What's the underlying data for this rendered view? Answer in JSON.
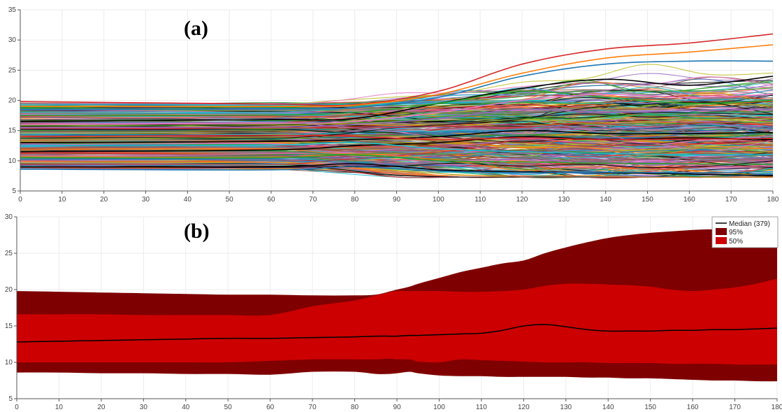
{
  "chart_data": [
    {
      "type": "line",
      "label": "(a)",
      "xlim": [
        0,
        180
      ],
      "ylim": [
        5,
        35
      ],
      "x_ticks": [
        0,
        10,
        20,
        30,
        40,
        50,
        60,
        70,
        80,
        90,
        100,
        110,
        120,
        130,
        140,
        150,
        160,
        170,
        180
      ],
      "y_ticks": [
        5,
        10,
        15,
        20,
        25,
        30,
        35
      ],
      "grid": true,
      "ensemble_member_count": 379,
      "palette": [
        "#1f77b4",
        "#ff7f0e",
        "#2ca02c",
        "#d62728",
        "#9467bd",
        "#8c564b",
        "#e377c2",
        "#7f7f7f",
        "#bcbd22",
        "#17becf",
        "#000000"
      ],
      "series": [
        {
          "x": [
            0,
            60,
            80,
            100,
            120,
            140,
            160,
            180
          ],
          "values": [
            19.8,
            19.4,
            19.3,
            21.5,
            26.0,
            28.5,
            29.5,
            31.0
          ],
          "color": "#d62728"
        },
        {
          "x": [
            0,
            60,
            80,
            100,
            120,
            140,
            160,
            180
          ],
          "values": [
            19.0,
            19.0,
            19.2,
            21.0,
            24.5,
            27.0,
            28.0,
            29.2
          ],
          "color": "#ff7f0e"
        },
        {
          "x": [
            0,
            60,
            80,
            100,
            120,
            140,
            160,
            180
          ],
          "values": [
            18.5,
            18.6,
            18.8,
            20.5,
            24.0,
            26.0,
            26.5,
            26.5
          ],
          "color": "#1f77b4"
        },
        {
          "x": [
            0,
            60,
            80,
            100,
            120,
            140,
            160,
            180
          ],
          "values": [
            16.5,
            16.8,
            17.0,
            19.5,
            22.0,
            23.5,
            22.5,
            24.0
          ],
          "color": "#000000"
        },
        {
          "x": [
            0,
            60,
            80,
            100,
            120,
            140,
            160,
            180
          ],
          "values": [
            13.0,
            13.2,
            13.5,
            14.0,
            15.0,
            14.5,
            14.5,
            14.7
          ],
          "color": "#000000"
        },
        {
          "x": [
            0,
            60,
            80,
            100,
            120,
            140,
            160,
            180
          ],
          "values": [
            11.5,
            11.8,
            12.5,
            13.0,
            14.0,
            13.5,
            13.8,
            13.5
          ],
          "color": "#000000"
        },
        {
          "x": [
            0,
            60,
            80,
            100,
            120,
            140,
            160,
            180
          ],
          "values": [
            9.0,
            9.0,
            9.5,
            8.5,
            8.2,
            8.0,
            7.8,
            7.5
          ],
          "color": "#000000"
        },
        {
          "x": [
            0,
            60,
            80,
            100,
            120,
            140,
            160,
            180
          ],
          "values": [
            8.6,
            8.5,
            9.0,
            8.3,
            8.0,
            8.1,
            8.0,
            8.2
          ],
          "color": "#1f77b4"
        },
        {
          "x": [
            0,
            60,
            80,
            100,
            120,
            140,
            160,
            180
          ],
          "values": [
            17.5,
            17.6,
            18.0,
            19.5,
            21.5,
            20.5,
            19.5,
            20.0
          ],
          "color": "#2ca02c"
        },
        {
          "x": [
            0,
            60,
            80,
            100,
            120,
            140,
            160,
            180
          ],
          "values": [
            15.5,
            15.6,
            16.0,
            17.0,
            18.5,
            18.0,
            18.3,
            18.5
          ],
          "color": "#9467bd"
        },
        {
          "x": [
            0,
            60,
            80,
            100,
            120,
            140,
            160,
            180
          ],
          "values": [
            14.0,
            14.2,
            14.0,
            13.5,
            13.8,
            13.5,
            13.6,
            13.7
          ],
          "color": "#d62728"
        },
        {
          "x": [
            0,
            60,
            80,
            100,
            120,
            140,
            160,
            180
          ],
          "values": [
            10.5,
            10.5,
            11.0,
            10.0,
            9.8,
            9.6,
            9.5,
            9.4
          ],
          "color": "#2ca02c"
        },
        {
          "x": [
            0,
            60,
            80,
            100,
            120,
            140,
            160,
            180
          ],
          "values": [
            12.5,
            12.6,
            13.0,
            12.0,
            11.5,
            11.2,
            11.0,
            11.0
          ],
          "color": "#17becf"
        },
        {
          "x": [
            0,
            60,
            80,
            100,
            120,
            140,
            160,
            180
          ],
          "values": [
            16.0,
            16.2,
            16.5,
            18.0,
            20.0,
            21.0,
            20.5,
            21.0
          ],
          "color": "#e377c2"
        }
      ]
    },
    {
      "type": "area",
      "label": "(b)",
      "xlim": [
        0,
        180
      ],
      "ylim": [
        5,
        30
      ],
      "x_ticks": [
        0,
        10,
        20,
        30,
        40,
        50,
        60,
        70,
        80,
        90,
        100,
        110,
        120,
        130,
        140,
        150,
        160,
        170,
        180
      ],
      "y_ticks": [
        5,
        10,
        15,
        20,
        25,
        30
      ],
      "grid": true,
      "legend_position": "top-right",
      "legend": [
        {
          "label": "Median (379)",
          "kind": "line",
          "color": "#000000"
        },
        {
          "label": "95%",
          "kind": "box",
          "color": "#7f0000"
        },
        {
          "label": "50%",
          "kind": "box",
          "color": "#cc0000"
        }
      ],
      "x": [
        0,
        10,
        20,
        30,
        40,
        50,
        60,
        70,
        80,
        85,
        88,
        90,
        93,
        95,
        100,
        105,
        110,
        115,
        120,
        125,
        130,
        135,
        140,
        145,
        150,
        155,
        160,
        165,
        170,
        175,
        180
      ],
      "band_95": {
        "upper": [
          19.8,
          19.7,
          19.6,
          19.5,
          19.4,
          19.3,
          19.3,
          19.2,
          19.2,
          19.3,
          19.7,
          20.0,
          20.4,
          20.8,
          21.6,
          22.4,
          23.0,
          23.6,
          24.0,
          25.0,
          25.8,
          26.5,
          27.1,
          27.5,
          27.8,
          28.0,
          28.2,
          28.3,
          28.4,
          28.4,
          28.5
        ],
        "lower": [
          8.6,
          8.6,
          8.5,
          8.5,
          8.4,
          8.4,
          8.3,
          8.7,
          8.7,
          8.4,
          8.4,
          8.5,
          8.7,
          8.5,
          8.2,
          8.1,
          8.1,
          8.0,
          8.0,
          8.0,
          8.0,
          7.9,
          7.9,
          7.8,
          7.8,
          7.7,
          7.6,
          7.5,
          7.5,
          7.4,
          7.4
        ]
      },
      "band_50": {
        "upper": [
          16.6,
          16.6,
          16.6,
          16.5,
          16.5,
          16.5,
          16.5,
          17.7,
          18.5,
          19.2,
          19.6,
          19.8,
          19.8,
          19.8,
          19.8,
          19.7,
          19.7,
          19.8,
          20.0,
          20.5,
          20.8,
          20.8,
          20.7,
          20.6,
          20.4,
          20.0,
          19.8,
          20.0,
          20.3,
          20.8,
          21.5
        ],
        "lower": [
          10.0,
          10.0,
          10.0,
          10.0,
          10.0,
          10.0,
          10.2,
          10.4,
          10.4,
          10.4,
          10.5,
          10.4,
          10.4,
          10.1,
          10.0,
          10.4,
          10.3,
          10.2,
          10.1,
          10.0,
          10.0,
          10.0,
          9.9,
          9.9,
          9.9,
          9.8,
          9.8,
          9.8,
          9.7,
          9.7,
          9.7
        ]
      },
      "median": [
        12.8,
        12.9,
        13.0,
        13.1,
        13.2,
        13.3,
        13.3,
        13.4,
        13.5,
        13.6,
        13.6,
        13.6,
        13.7,
        13.7,
        13.8,
        13.9,
        14.0,
        14.4,
        15.0,
        15.2,
        14.9,
        14.5,
        14.3,
        14.3,
        14.3,
        14.4,
        14.4,
        14.5,
        14.5,
        14.6,
        14.7
      ]
    }
  ]
}
